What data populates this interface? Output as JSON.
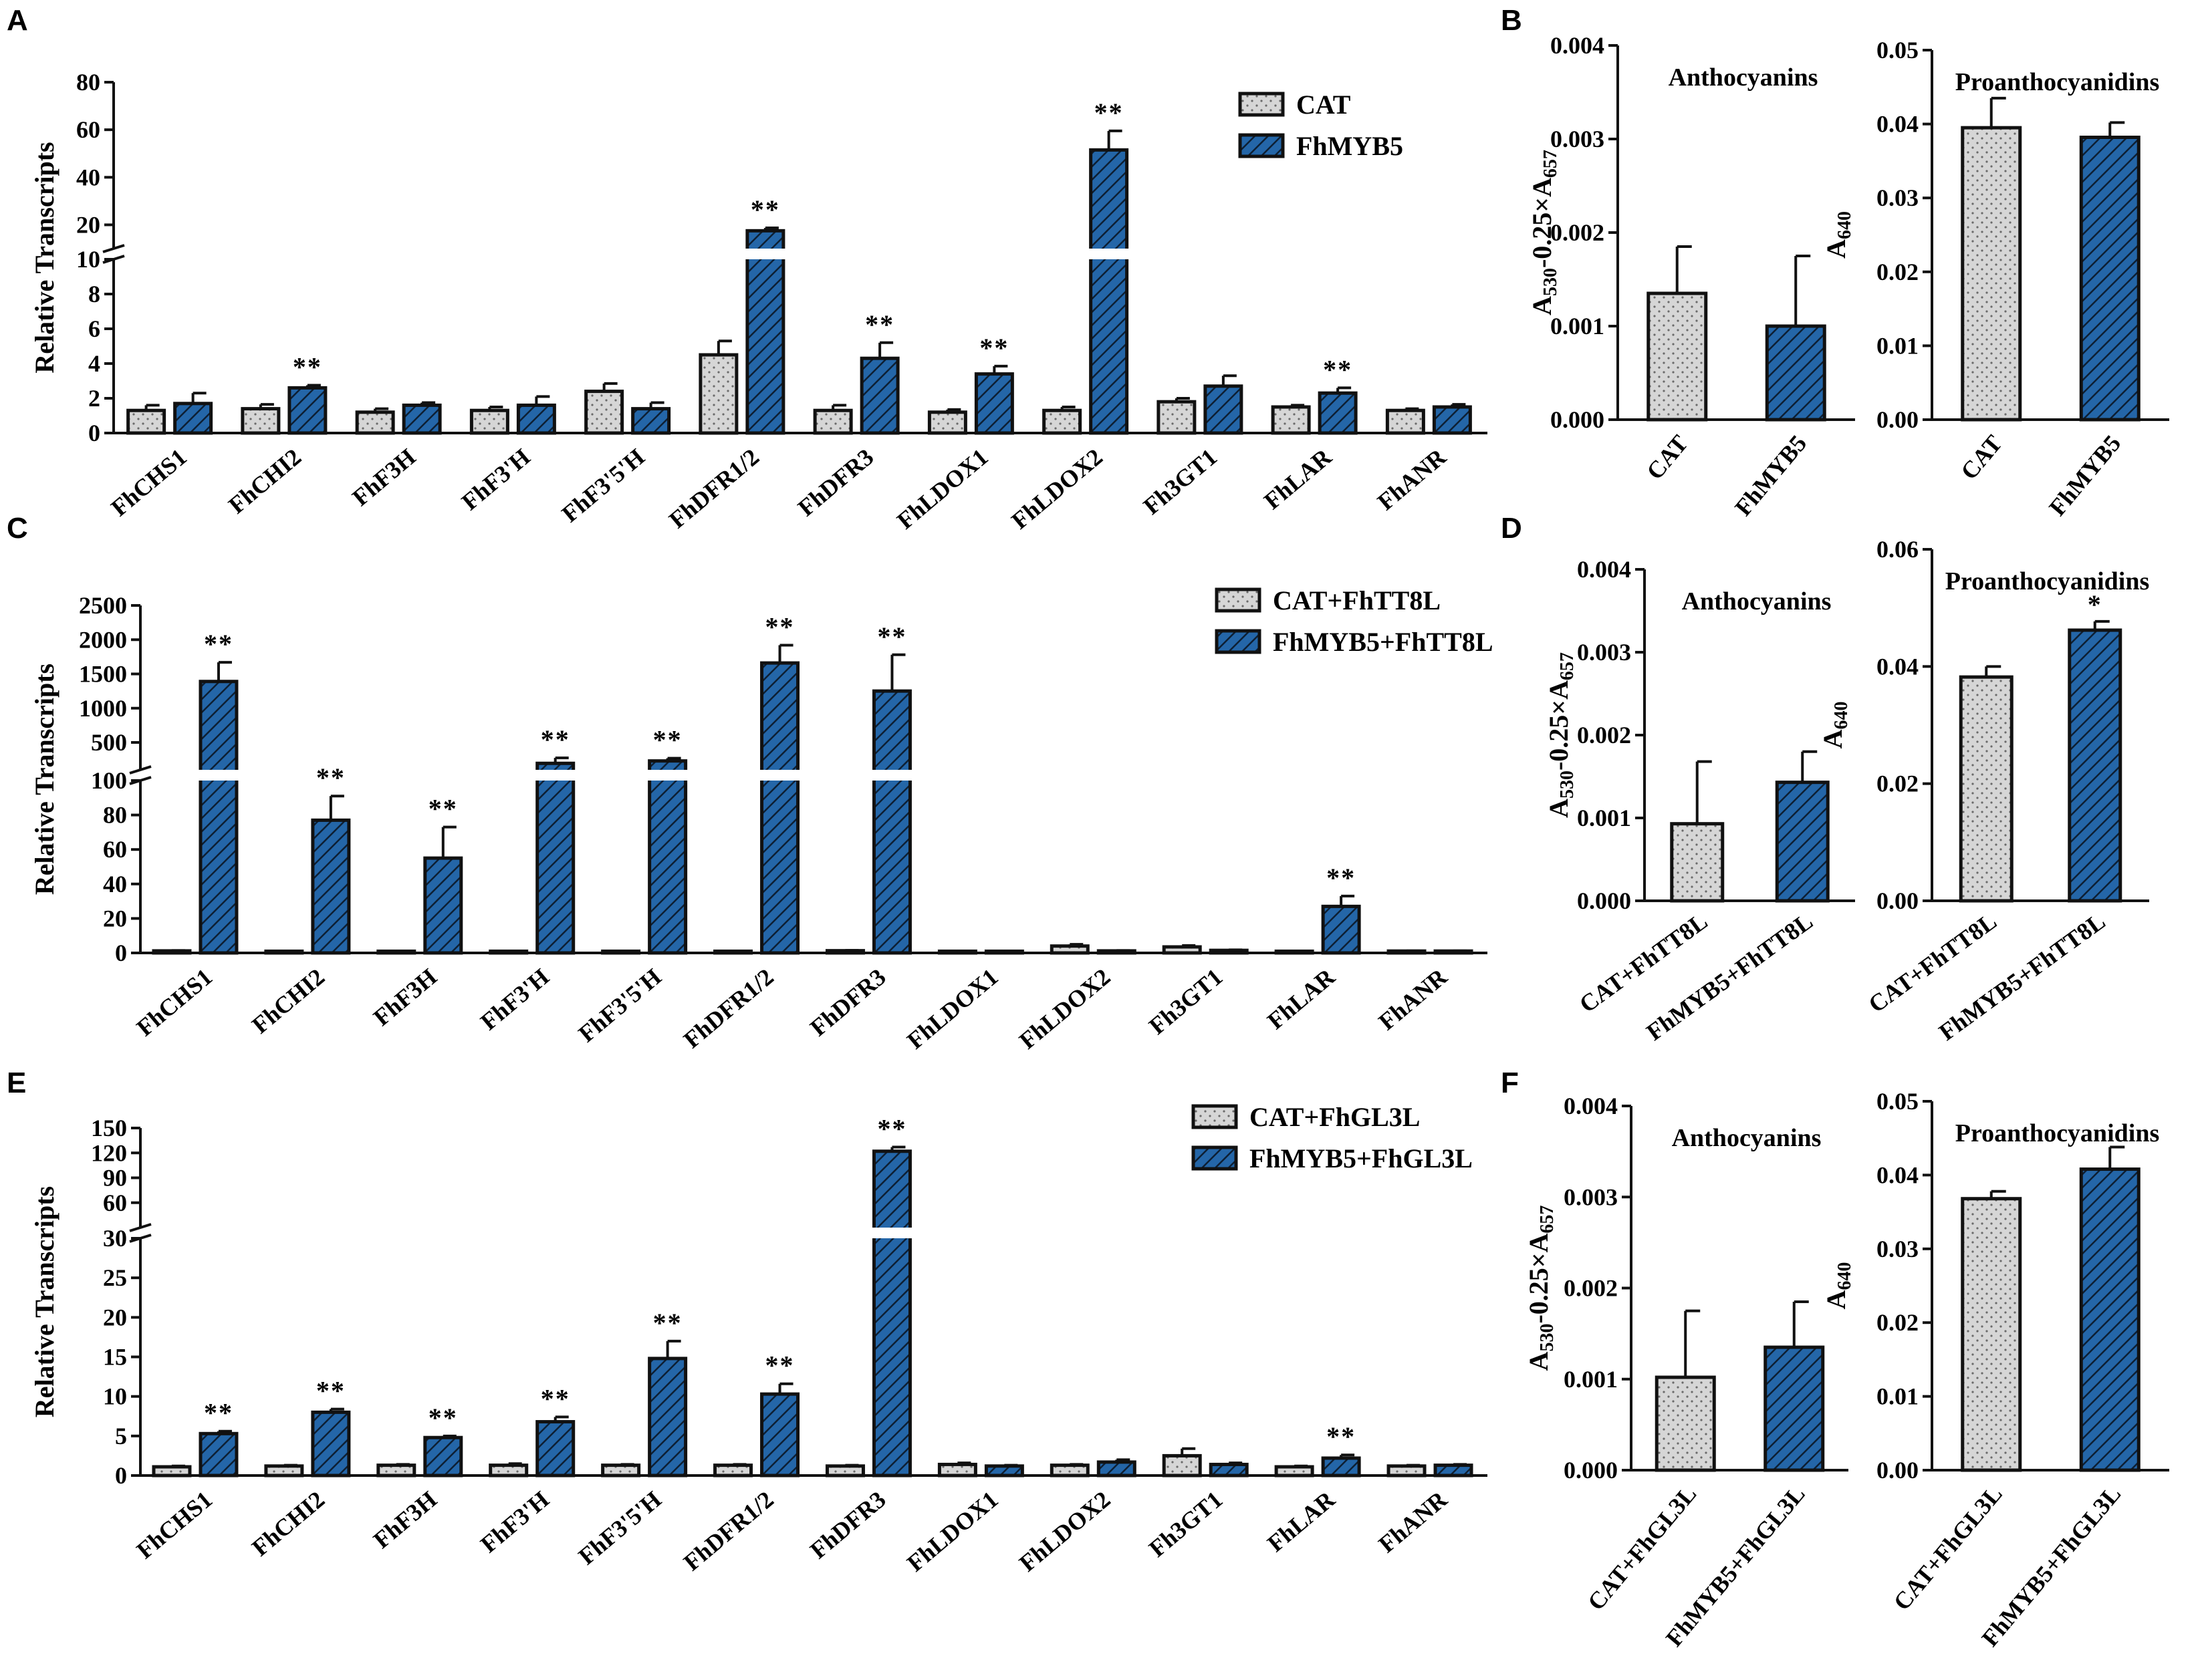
{
  "colors": {
    "cat": "#d6d6d6",
    "myb": "#2466a8"
  },
  "chart_data": [
    {
      "panel": "A",
      "type": "bar",
      "ylabel": "Relative Transcripts",
      "legend": [
        "CAT",
        "FhMYB5"
      ],
      "categories": [
        "FhCHS1",
        "FhCHI2",
        "FhF3H",
        "FhF3'H",
        "FhF3'5'H",
        "FhDFR1/2",
        "FhDFR3",
        "FhLDOX1",
        "FhLDOX2",
        "Fh3GT1",
        "FhLAR",
        "FhANR"
      ],
      "series": [
        {
          "name": "CAT",
          "values": [
            1.3,
            1.4,
            1.2,
            1.3,
            2.4,
            4.5,
            1.3,
            1.2,
            1.3,
            1.8,
            1.5,
            1.3
          ],
          "errors": [
            0.3,
            0.25,
            0.2,
            0.2,
            0.45,
            0.8,
            0.3,
            0.15,
            0.2,
            0.2,
            0.1,
            0.1
          ]
        },
        {
          "name": "FhMYB5",
          "values": [
            1.7,
            2.6,
            1.6,
            1.6,
            1.4,
            17.5,
            4.3,
            3.4,
            51.5,
            2.7,
            2.3,
            1.5
          ],
          "errors": [
            0.6,
            0.15,
            0.15,
            0.5,
            0.35,
            1.2,
            0.9,
            0.45,
            8,
            0.6,
            0.3,
            0.15
          ]
        }
      ],
      "significance": [
        "",
        "**",
        "",
        "",
        "",
        "**",
        "**",
        "**",
        "**",
        "",
        "**",
        ""
      ],
      "axis_break": {
        "lower": [
          0,
          10
        ],
        "upper": [
          10,
          80
        ]
      },
      "lower_ticks": [
        0,
        2,
        4,
        6,
        8,
        10
      ],
      "upper_ticks": [
        20,
        40,
        60,
        80
      ]
    },
    {
      "panel": "C",
      "type": "bar",
      "ylabel": "Relative Transcripts",
      "legend": [
        "CAT+FhTT8L",
        "FhMYB5+FhTT8L"
      ],
      "categories": [
        "FhCHS1",
        "FhCHI2",
        "FhF3H",
        "FhF3'H",
        "FhF3'5'H",
        "FhDFR1/2",
        "FhDFR3",
        "FhLDOX1",
        "FhLDOX2",
        "Fh3GT1",
        "FhLAR",
        "FhANR"
      ],
      "series": [
        {
          "name": "CAT+FhTT8L",
          "values": [
            1.2,
            1,
            1,
            1,
            1,
            1,
            1.3,
            1,
            4,
            3.5,
            1,
            1.1
          ],
          "errors": [
            0.2,
            0.1,
            0.1,
            0.1,
            0.1,
            0.1,
            0.2,
            0.1,
            1,
            0.8,
            0.1,
            0.1
          ]
        },
        {
          "name": "FhMYB5+FhTT8L",
          "values": [
            1390,
            77,
            55,
            195,
            230,
            1660,
            1250,
            1,
            1.2,
            1.5,
            27,
            1.1
          ],
          "errors": [
            280,
            14,
            18,
            80,
            40,
            260,
            530,
            0.1,
            0.2,
            0.3,
            6,
            0.1
          ]
        }
      ],
      "significance": [
        "**",
        "**",
        "**",
        "**",
        "**",
        "**",
        "**",
        "",
        "",
        "",
        "**",
        ""
      ],
      "axis_break": {
        "lower": [
          0,
          100
        ],
        "upper": [
          100,
          2500
        ]
      },
      "lower_ticks": [
        0,
        20,
        40,
        60,
        80,
        100
      ],
      "upper_ticks": [
        500,
        1000,
        1500,
        2000,
        2500
      ]
    },
    {
      "panel": "E",
      "type": "bar",
      "ylabel": "Relative Transcripts",
      "legend": [
        "CAT+FhGL3L",
        "FhMYB5+FhGL3L"
      ],
      "categories": [
        "FhCHS1",
        "FhCHI2",
        "FhF3H",
        "FhF3'H",
        "FhF3'5'H",
        "FhDFR1/2",
        "FhDFR3",
        "FhLDOX1",
        "FhLDOX2",
        "Fh3GT1",
        "FhLAR",
        "FhANR"
      ],
      "series": [
        {
          "name": "CAT+FhGL3L",
          "values": [
            1.1,
            1.2,
            1.3,
            1.3,
            1.3,
            1.3,
            1.2,
            1.4,
            1.3,
            2.5,
            1.1,
            1.2
          ],
          "errors": [
            0.1,
            0.1,
            0.1,
            0.2,
            0.1,
            0.1,
            0.1,
            0.2,
            0.1,
            0.9,
            0.1,
            0.1
          ]
        },
        {
          "name": "FhMYB5+FhGL3L",
          "values": [
            5.3,
            8,
            4.8,
            6.8,
            14.8,
            10.3,
            122,
            1.2,
            1.7,
            1.4,
            2.2,
            1.3
          ],
          "errors": [
            0.3,
            0.4,
            0.2,
            0.6,
            2.2,
            1.3,
            5,
            0.1,
            0.3,
            0.2,
            0.4,
            0.1
          ]
        }
      ],
      "significance": [
        "**",
        "**",
        "**",
        "**",
        "**",
        "**",
        "**",
        "",
        "",
        "",
        "**",
        ""
      ],
      "axis_break": {
        "lower": [
          0,
          30
        ],
        "upper": [
          30,
          150
        ]
      },
      "lower_ticks": [
        0,
        5,
        10,
        15,
        20,
        25,
        30
      ],
      "upper_ticks": [
        60,
        90,
        120,
        150
      ]
    },
    {
      "panel": "B",
      "type": "bar",
      "title": "Anthocyanins",
      "ylabel_base": "A",
      "ylabel_sub1": "530",
      "ylabel_mid": "-0.25×A",
      "ylabel_sub2": "657",
      "categories": [
        "CAT",
        "FhMYB5"
      ],
      "values": [
        0.00135,
        0.001
      ],
      "errors": [
        0.0005,
        0.00075
      ],
      "significance": [
        "",
        ""
      ],
      "ylim": [
        0,
        0.004
      ],
      "ticks": [
        0,
        0.001,
        0.002,
        0.003,
        0.004
      ],
      "tick_labels": [
        "0.000",
        "0.001",
        "0.002",
        "0.003",
        "0.004"
      ]
    },
    {
      "panel": "B2",
      "type": "bar",
      "title": "Proanthocyanidins",
      "ylabel_base": "A",
      "ylabel_sub1": "640",
      "categories": [
        "CAT",
        "FhMYB5"
      ],
      "values": [
        0.0395,
        0.0382
      ],
      "errors": [
        0.004,
        0.002
      ],
      "significance": [
        "",
        ""
      ],
      "ylim": [
        0,
        0.05
      ],
      "ticks": [
        0,
        0.01,
        0.02,
        0.03,
        0.04,
        0.05
      ],
      "tick_labels": [
        "0.00",
        "0.01",
        "0.02",
        "0.03",
        "0.04",
        "0.05"
      ]
    },
    {
      "panel": "D",
      "type": "bar",
      "title": "Anthocyanins",
      "ylabel_base": "A",
      "ylabel_sub1": "530",
      "ylabel_mid": "-0.25×A",
      "ylabel_sub2": "657",
      "categories": [
        "CAT+FhTT8L",
        "FhMYB5+FhTT8L"
      ],
      "values": [
        0.00093,
        0.00143
      ],
      "errors": [
        0.00075,
        0.00037
      ],
      "significance": [
        "",
        ""
      ],
      "ylim": [
        0,
        0.004
      ],
      "ticks": [
        0,
        0.001,
        0.002,
        0.003,
        0.004
      ],
      "tick_labels": [
        "0.000",
        "0.001",
        "0.002",
        "0.003",
        "0.004"
      ]
    },
    {
      "panel": "D2",
      "type": "bar",
      "title": "Proanthocyanidins",
      "ylabel_base": "A",
      "ylabel_sub1": "640",
      "categories": [
        "CAT+FhTT8L",
        "FhMYB5+FhTT8L"
      ],
      "values": [
        0.0382,
        0.0462
      ],
      "errors": [
        0.0018,
        0.0015
      ],
      "significance": [
        "",
        "*"
      ],
      "ylim": [
        0,
        0.06
      ],
      "ticks": [
        0,
        0.02,
        0.04,
        0.06
      ],
      "tick_labels": [
        "0.00",
        "0.02",
        "0.04",
        "0.06"
      ]
    },
    {
      "panel": "F",
      "type": "bar",
      "title": "Anthocyanins",
      "ylabel_base": "A",
      "ylabel_sub1": "530",
      "ylabel_mid": "-0.25×A",
      "ylabel_sub2": "657",
      "categories": [
        "CAT+FhGL3L",
        "FhMYB5+FhGL3L"
      ],
      "values": [
        0.00102,
        0.00135
      ],
      "errors": [
        0.00073,
        0.0005
      ],
      "significance": [
        "",
        ""
      ],
      "ylim": [
        0,
        0.004
      ],
      "ticks": [
        0,
        0.001,
        0.002,
        0.003,
        0.004
      ],
      "tick_labels": [
        "0.000",
        "0.001",
        "0.002",
        "0.003",
        "0.004"
      ]
    },
    {
      "panel": "F2",
      "type": "bar",
      "title": "Proanthocyanidins",
      "ylabel_base": "A",
      "ylabel_sub1": "640",
      "categories": [
        "CAT+FhGL3L",
        "FhMYB5+FhGL3L"
      ],
      "values": [
        0.0368,
        0.0408
      ],
      "errors": [
        0.001,
        0.003
      ],
      "significance": [
        "",
        ""
      ],
      "ylim": [
        0,
        0.05
      ],
      "ticks": [
        0,
        0.01,
        0.02,
        0.03,
        0.04,
        0.05
      ],
      "tick_labels": [
        "0.00",
        "0.01",
        "0.02",
        "0.03",
        "0.04",
        "0.05"
      ]
    }
  ],
  "panel_labels": [
    "A",
    "B",
    "C",
    "D",
    "E",
    "F"
  ]
}
